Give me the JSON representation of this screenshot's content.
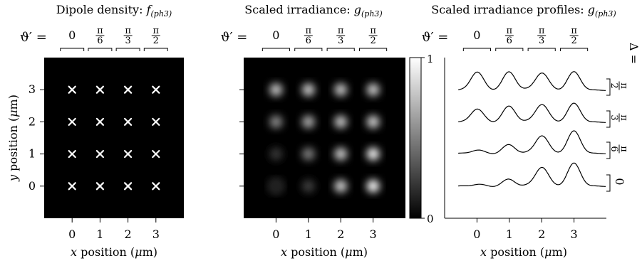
{
  "chart_data": [
    {
      "type": "scatter",
      "title": "Dipole density: f(ph3)",
      "title_text": "Dipole density: ",
      "title_func": "f",
      "title_sub": "(ph3)",
      "xlabel_text": "x",
      "xlabel_rest": " position (",
      "xlabel_unit": "μ",
      "xlabel_end": "m)",
      "ylabel_text": "y",
      "ylabel_rest": " position (",
      "ylabel_unit": "μ",
      "ylabel_end": "m)",
      "x_ticks": [
        "0",
        "1",
        "2",
        "3"
      ],
      "y_ticks": [
        "0",
        "1",
        "2",
        "3"
      ],
      "xlim": [
        -1,
        4
      ],
      "ylim": [
        -1,
        4
      ],
      "background": "#000000",
      "marker": "x",
      "marker_color": "#ffffff",
      "points": [
        {
          "x": 0,
          "y": 0
        },
        {
          "x": 1,
          "y": 0
        },
        {
          "x": 2,
          "y": 0
        },
        {
          "x": 3,
          "y": 0
        },
        {
          "x": 0,
          "y": 1
        },
        {
          "x": 1,
          "y": 1
        },
        {
          "x": 2,
          "y": 1
        },
        {
          "x": 3,
          "y": 1
        },
        {
          "x": 0,
          "y": 2
        },
        {
          "x": 1,
          "y": 2
        },
        {
          "x": 2,
          "y": 2
        },
        {
          "x": 3,
          "y": 2
        },
        {
          "x": 0,
          "y": 3
        },
        {
          "x": 1,
          "y": 3
        },
        {
          "x": 2,
          "y": 3
        },
        {
          "x": 3,
          "y": 3
        }
      ],
      "theta_label": "ϑ′ =",
      "theta_ticks": [
        "0",
        "π/6",
        "π/3",
        "π/2"
      ]
    },
    {
      "type": "heatmap",
      "title": "Scaled irradiance: g(ph3)",
      "title_text": "Scaled irradiance: ",
      "title_func": "g",
      "title_sub": "(ph3)",
      "xlabel_text": "x",
      "xlabel_rest": " position (",
      "xlabel_unit": "μ",
      "xlabel_end": "m)",
      "x_ticks": [
        "0",
        "1",
        "2",
        "3"
      ],
      "xlim": [
        -1,
        4
      ],
      "ylim": [
        -1,
        4
      ],
      "colorbar": {
        "min": 0,
        "max": 1,
        "ticks": [
          "0",
          "1"
        ]
      },
      "spots": [
        {
          "x": 0,
          "y": 3,
          "value": 0.78
        },
        {
          "x": 1,
          "y": 3,
          "value": 0.8
        },
        {
          "x": 2,
          "y": 3,
          "value": 0.78
        },
        {
          "x": 3,
          "y": 3,
          "value": 0.8
        },
        {
          "x": 0,
          "y": 2,
          "value": 0.55
        },
        {
          "x": 1,
          "y": 2,
          "value": 0.68
        },
        {
          "x": 2,
          "y": 2,
          "value": 0.78
        },
        {
          "x": 3,
          "y": 2,
          "value": 0.82
        },
        {
          "x": 0,
          "y": 1,
          "value": 0.22
        },
        {
          "x": 1,
          "y": 1,
          "value": 0.5
        },
        {
          "x": 2,
          "y": 1,
          "value": 0.8
        },
        {
          "x": 3,
          "y": 1,
          "value": 0.97
        },
        {
          "x": 0,
          "y": 0,
          "value": 0.1,
          "ring": true
        },
        {
          "x": 1,
          "y": 0,
          "value": 0.25
        },
        {
          "x": 2,
          "y": 0,
          "value": 0.82
        },
        {
          "x": 3,
          "y": 0,
          "value": 1.0
        }
      ],
      "theta_label": "ϑ′ =",
      "theta_ticks": [
        "0",
        "π/6",
        "π/3",
        "π/2"
      ]
    },
    {
      "type": "line",
      "title": "Scaled irradiance profiles: g(ph3)",
      "title_text": "Scaled irradiance profiles: ",
      "title_func": "g",
      "title_sub": "(ph3)",
      "xlabel_text": "x",
      "xlabel_rest": " position (",
      "xlabel_unit": "μ",
      "xlabel_end": "m)",
      "x_ticks": [
        "0",
        "1",
        "2",
        "3"
      ],
      "xlim": [
        -1,
        4
      ],
      "theta_label": "ϑ′ =",
      "theta_ticks": [
        "0",
        "π/6",
        "π/3",
        "π/2"
      ],
      "delta_label": "Δ =",
      "series": [
        {
          "delta": "π/2",
          "peaks": [
            0.8,
            0.8,
            0.78,
            0.8
          ]
        },
        {
          "delta": "π/3",
          "peaks": [
            0.58,
            0.7,
            0.8,
            0.82
          ]
        },
        {
          "delta": "π/6",
          "peaks": [
            0.15,
            0.38,
            0.8,
            0.98
          ]
        },
        {
          "delta": "0",
          "peaks": [
            0.08,
            0.3,
            0.85,
            1.0
          ]
        }
      ]
    }
  ]
}
